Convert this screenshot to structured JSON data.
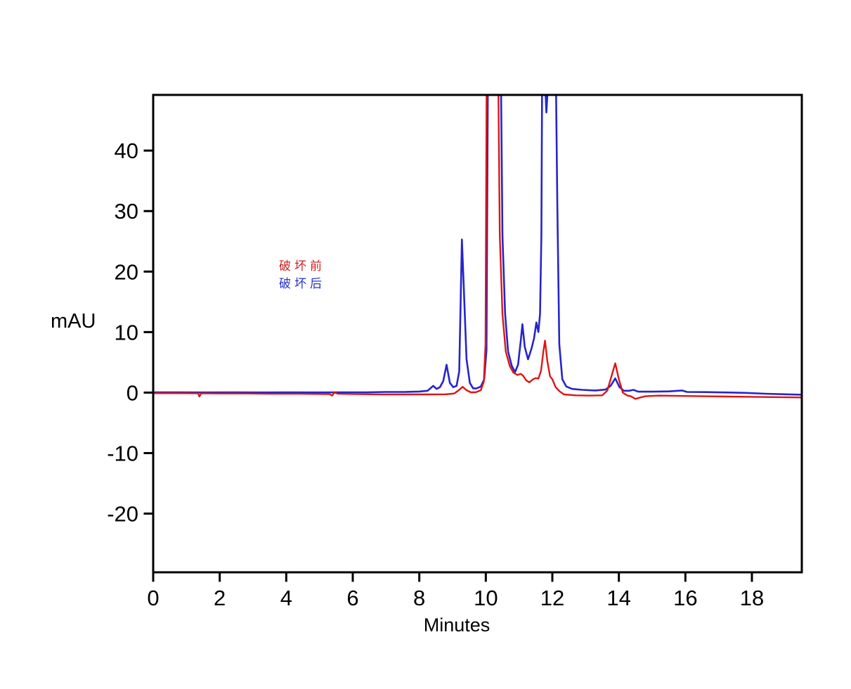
{
  "figure": {
    "background": "#ffffff",
    "axis_color": "#000000",
    "tick_label_color": "#000000"
  },
  "chart_data": {
    "type": "line",
    "title": "",
    "xlabel": "Minutes",
    "ylabel": "mAU",
    "xlim": [
      0,
      19.5
    ],
    "ylim": [
      -29.7,
      49.2
    ],
    "x_ticks": [
      0,
      2,
      4,
      6,
      8,
      10,
      12,
      14,
      16,
      18
    ],
    "y_ticks": [
      -20,
      -10,
      0,
      10,
      20,
      30,
      40
    ],
    "grid": false,
    "legend_position": "inside upper-left of plot area",
    "note": "HPLC chromatogram overlay; y values of 60 represent off-scale peaks clipped at the plot top",
    "series": [
      {
        "name": "破坏后",
        "color": "#2525cc",
        "points": [
          [
            0,
            0.05
          ],
          [
            0.8,
            0.05
          ],
          [
            1.6,
            0.02
          ],
          [
            2.4,
            0.05
          ],
          [
            3.2,
            0.02
          ],
          [
            4.0,
            0.05
          ],
          [
            4.8,
            0.02
          ],
          [
            5.6,
            0.05
          ],
          [
            6.4,
            0.05
          ],
          [
            7.0,
            0.1
          ],
          [
            7.6,
            0.12
          ],
          [
            8.0,
            0.18
          ],
          [
            8.25,
            0.3
          ],
          [
            8.42,
            1.1
          ],
          [
            8.52,
            0.6
          ],
          [
            8.62,
            0.9
          ],
          [
            8.72,
            1.9
          ],
          [
            8.82,
            4.6
          ],
          [
            8.92,
            1.6
          ],
          [
            9.02,
            0.9
          ],
          [
            9.12,
            1.1
          ],
          [
            9.2,
            3.5
          ],
          [
            9.28,
            25.3
          ],
          [
            9.34,
            17
          ],
          [
            9.42,
            5.5
          ],
          [
            9.52,
            1.6
          ],
          [
            9.62,
            0.7
          ],
          [
            9.72,
            0.7
          ],
          [
            9.85,
            1.0
          ],
          [
            9.95,
            2.2
          ],
          [
            10.02,
            7
          ],
          [
            10.07,
            60
          ],
          [
            10.44,
            60
          ],
          [
            10.5,
            26
          ],
          [
            10.58,
            13
          ],
          [
            10.67,
            6.8
          ],
          [
            10.78,
            4.4
          ],
          [
            10.88,
            3.4
          ],
          [
            10.97,
            4.6
          ],
          [
            11.05,
            8.5
          ],
          [
            11.1,
            11.3
          ],
          [
            11.17,
            7.6
          ],
          [
            11.27,
            5.5
          ],
          [
            11.37,
            7.2
          ],
          [
            11.45,
            9.0
          ],
          [
            11.52,
            11.6
          ],
          [
            11.58,
            10.0
          ],
          [
            11.63,
            13
          ],
          [
            11.67,
            26
          ],
          [
            11.7,
            60
          ],
          [
            11.74,
            60
          ],
          [
            11.79,
            50
          ],
          [
            11.82,
            46.3
          ],
          [
            11.87,
            51
          ],
          [
            11.91,
            60
          ],
          [
            12.09,
            60
          ],
          [
            12.15,
            31
          ],
          [
            12.21,
            8
          ],
          [
            12.3,
            2.2
          ],
          [
            12.42,
            1.0
          ],
          [
            12.6,
            0.6
          ],
          [
            12.9,
            0.45
          ],
          [
            13.3,
            0.35
          ],
          [
            13.6,
            0.5
          ],
          [
            13.75,
            1.1
          ],
          [
            13.89,
            2.35
          ],
          [
            14.02,
            0.9
          ],
          [
            14.15,
            0.3
          ],
          [
            14.3,
            0.3
          ],
          [
            14.44,
            0.45
          ],
          [
            14.58,
            0.15
          ],
          [
            15.0,
            0.15
          ],
          [
            15.5,
            0.2
          ],
          [
            15.9,
            0.35
          ],
          [
            16.05,
            0.1
          ],
          [
            16.6,
            0.08
          ],
          [
            17.2,
            0.02
          ],
          [
            17.8,
            -0.05
          ],
          [
            18.4,
            -0.18
          ],
          [
            19.0,
            -0.28
          ],
          [
            19.5,
            -0.35
          ]
        ]
      },
      {
        "name": "破坏前",
        "color": "#dd1515",
        "points": [
          [
            0,
            -0.1
          ],
          [
            0.6,
            -0.1
          ],
          [
            1.2,
            -0.12
          ],
          [
            1.35,
            -0.12
          ],
          [
            1.39,
            -0.65
          ],
          [
            1.44,
            -0.12
          ],
          [
            2.0,
            -0.15
          ],
          [
            2.8,
            -0.15
          ],
          [
            3.6,
            -0.2
          ],
          [
            4.4,
            -0.2
          ],
          [
            5.3,
            -0.25
          ],
          [
            5.38,
            -0.5
          ],
          [
            5.45,
            0.05
          ],
          [
            5.55,
            -0.2
          ],
          [
            6.2,
            -0.25
          ],
          [
            6.9,
            -0.3
          ],
          [
            7.6,
            -0.3
          ],
          [
            8.3,
            -0.3
          ],
          [
            8.8,
            -0.28
          ],
          [
            9.05,
            -0.15
          ],
          [
            9.2,
            0.45
          ],
          [
            9.3,
            0.95
          ],
          [
            9.42,
            0.4
          ],
          [
            9.55,
            0.05
          ],
          [
            9.7,
            0.05
          ],
          [
            9.85,
            0.4
          ],
          [
            9.94,
            1.8
          ],
          [
            9.99,
            8
          ],
          [
            10.03,
            60
          ],
          [
            10.36,
            60
          ],
          [
            10.42,
            26
          ],
          [
            10.5,
            13
          ],
          [
            10.6,
            6.8
          ],
          [
            10.72,
            4.4
          ],
          [
            10.83,
            3.3
          ],
          [
            10.95,
            2.9
          ],
          [
            11.05,
            3.1
          ],
          [
            11.12,
            2.8
          ],
          [
            11.22,
            2.0
          ],
          [
            11.31,
            1.7
          ],
          [
            11.42,
            2.2
          ],
          [
            11.5,
            2.4
          ],
          [
            11.58,
            2.3
          ],
          [
            11.66,
            3.6
          ],
          [
            11.73,
            6.8
          ],
          [
            11.78,
            8.6
          ],
          [
            11.85,
            5.2
          ],
          [
            11.93,
            2.7
          ],
          [
            12.0,
            2.2
          ],
          [
            12.1,
            0.9
          ],
          [
            12.22,
            0.2
          ],
          [
            12.35,
            -0.3
          ],
          [
            12.7,
            -0.45
          ],
          [
            13.1,
            -0.5
          ],
          [
            13.5,
            -0.45
          ],
          [
            13.65,
            0.3
          ],
          [
            13.79,
            2.9
          ],
          [
            13.89,
            4.85
          ],
          [
            14.0,
            2.2
          ],
          [
            14.12,
            0.0
          ],
          [
            14.26,
            -0.5
          ],
          [
            14.36,
            -0.6
          ],
          [
            14.5,
            -1.05
          ],
          [
            14.62,
            -0.85
          ],
          [
            14.8,
            -0.6
          ],
          [
            15.2,
            -0.5
          ],
          [
            15.8,
            -0.55
          ],
          [
            16.5,
            -0.6
          ],
          [
            17.2,
            -0.65
          ],
          [
            18.0,
            -0.7
          ],
          [
            18.8,
            -0.75
          ],
          [
            19.5,
            -0.8
          ]
        ]
      }
    ],
    "legend": [
      {
        "label": "破坏前",
        "color": "#cc2020"
      },
      {
        "label": "破坏后",
        "color": "#2233cc"
      }
    ]
  }
}
